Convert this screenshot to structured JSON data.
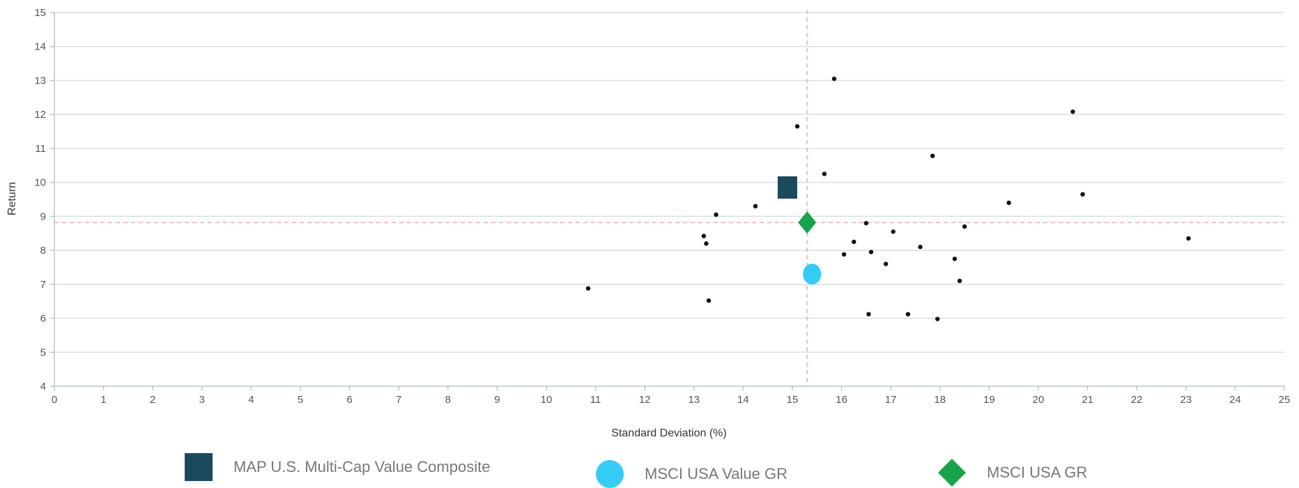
{
  "chart_data": {
    "type": "scatter",
    "xlabel": "Standard Deviation (%)",
    "ylabel": "Return",
    "xlim": [
      0,
      25
    ],
    "ylim": [
      4,
      15
    ],
    "x_ticks": [
      0,
      1,
      2,
      3,
      4,
      5,
      6,
      7,
      8,
      9,
      10,
      11,
      12,
      13,
      14,
      15,
      16,
      17,
      18,
      19,
      20,
      21,
      22,
      23,
      24,
      25
    ],
    "y_ticks": [
      4,
      5,
      6,
      7,
      8,
      9,
      10,
      11,
      12,
      13,
      14,
      15
    ],
    "grid": "horizontal",
    "reference_lines": {
      "x": 15.3,
      "y": 8.82
    },
    "series": [
      {
        "name": "MAP U.S. Multi-Cap Value Composite",
        "marker": "square",
        "color": "#1a4a5c",
        "points": [
          {
            "x": 14.9,
            "y": 9.85
          }
        ]
      },
      {
        "name": "MSCI USA Value GR",
        "marker": "circle",
        "color": "#33ccf5",
        "points": [
          {
            "x": 15.4,
            "y": 7.3
          }
        ]
      },
      {
        "name": "MSCI USA GR",
        "marker": "diamond",
        "color": "#16a34a",
        "points": [
          {
            "x": 15.3,
            "y": 8.82
          }
        ]
      },
      {
        "marker": "dot",
        "color": "#111111",
        "points": [
          {
            "x": 10.85,
            "y": 6.88
          },
          {
            "x": 13.2,
            "y": 8.42
          },
          {
            "x": 13.25,
            "y": 8.2
          },
          {
            "x": 13.3,
            "y": 6.52
          },
          {
            "x": 13.45,
            "y": 9.05
          },
          {
            "x": 14.25,
            "y": 9.3
          },
          {
            "x": 15.1,
            "y": 11.65
          },
          {
            "x": 15.65,
            "y": 10.25
          },
          {
            "x": 15.85,
            "y": 13.05
          },
          {
            "x": 16.05,
            "y": 7.88
          },
          {
            "x": 16.25,
            "y": 8.25
          },
          {
            "x": 16.5,
            "y": 8.8
          },
          {
            "x": 16.55,
            "y": 6.12
          },
          {
            "x": 16.6,
            "y": 7.95
          },
          {
            "x": 16.9,
            "y": 7.6
          },
          {
            "x": 17.05,
            "y": 8.55
          },
          {
            "x": 17.35,
            "y": 6.12
          },
          {
            "x": 17.6,
            "y": 8.1
          },
          {
            "x": 17.85,
            "y": 10.78
          },
          {
            "x": 17.95,
            "y": 5.98
          },
          {
            "x": 18.3,
            "y": 7.75
          },
          {
            "x": 18.4,
            "y": 7.1
          },
          {
            "x": 18.5,
            "y": 8.7
          },
          {
            "x": 19.4,
            "y": 9.4
          },
          {
            "x": 20.7,
            "y": 12.08
          },
          {
            "x": 20.9,
            "y": 9.65
          },
          {
            "x": 23.05,
            "y": 8.35
          }
        ]
      }
    ]
  },
  "legend": {
    "items": [
      {
        "label": "MAP U.S. Multi-Cap Value Composite",
        "marker": "square",
        "color": "#1a4a5c"
      },
      {
        "label": "MSCI USA Value GR",
        "marker": "circle",
        "color": "#33ccf5"
      },
      {
        "label": "MSCI USA GR",
        "marker": "diamond",
        "color": "#16a34a"
      }
    ]
  },
  "colors": {
    "gridline": "#d9dfe1",
    "axis": "#b8c4c8",
    "reference_line": "#f4a6b6"
  }
}
